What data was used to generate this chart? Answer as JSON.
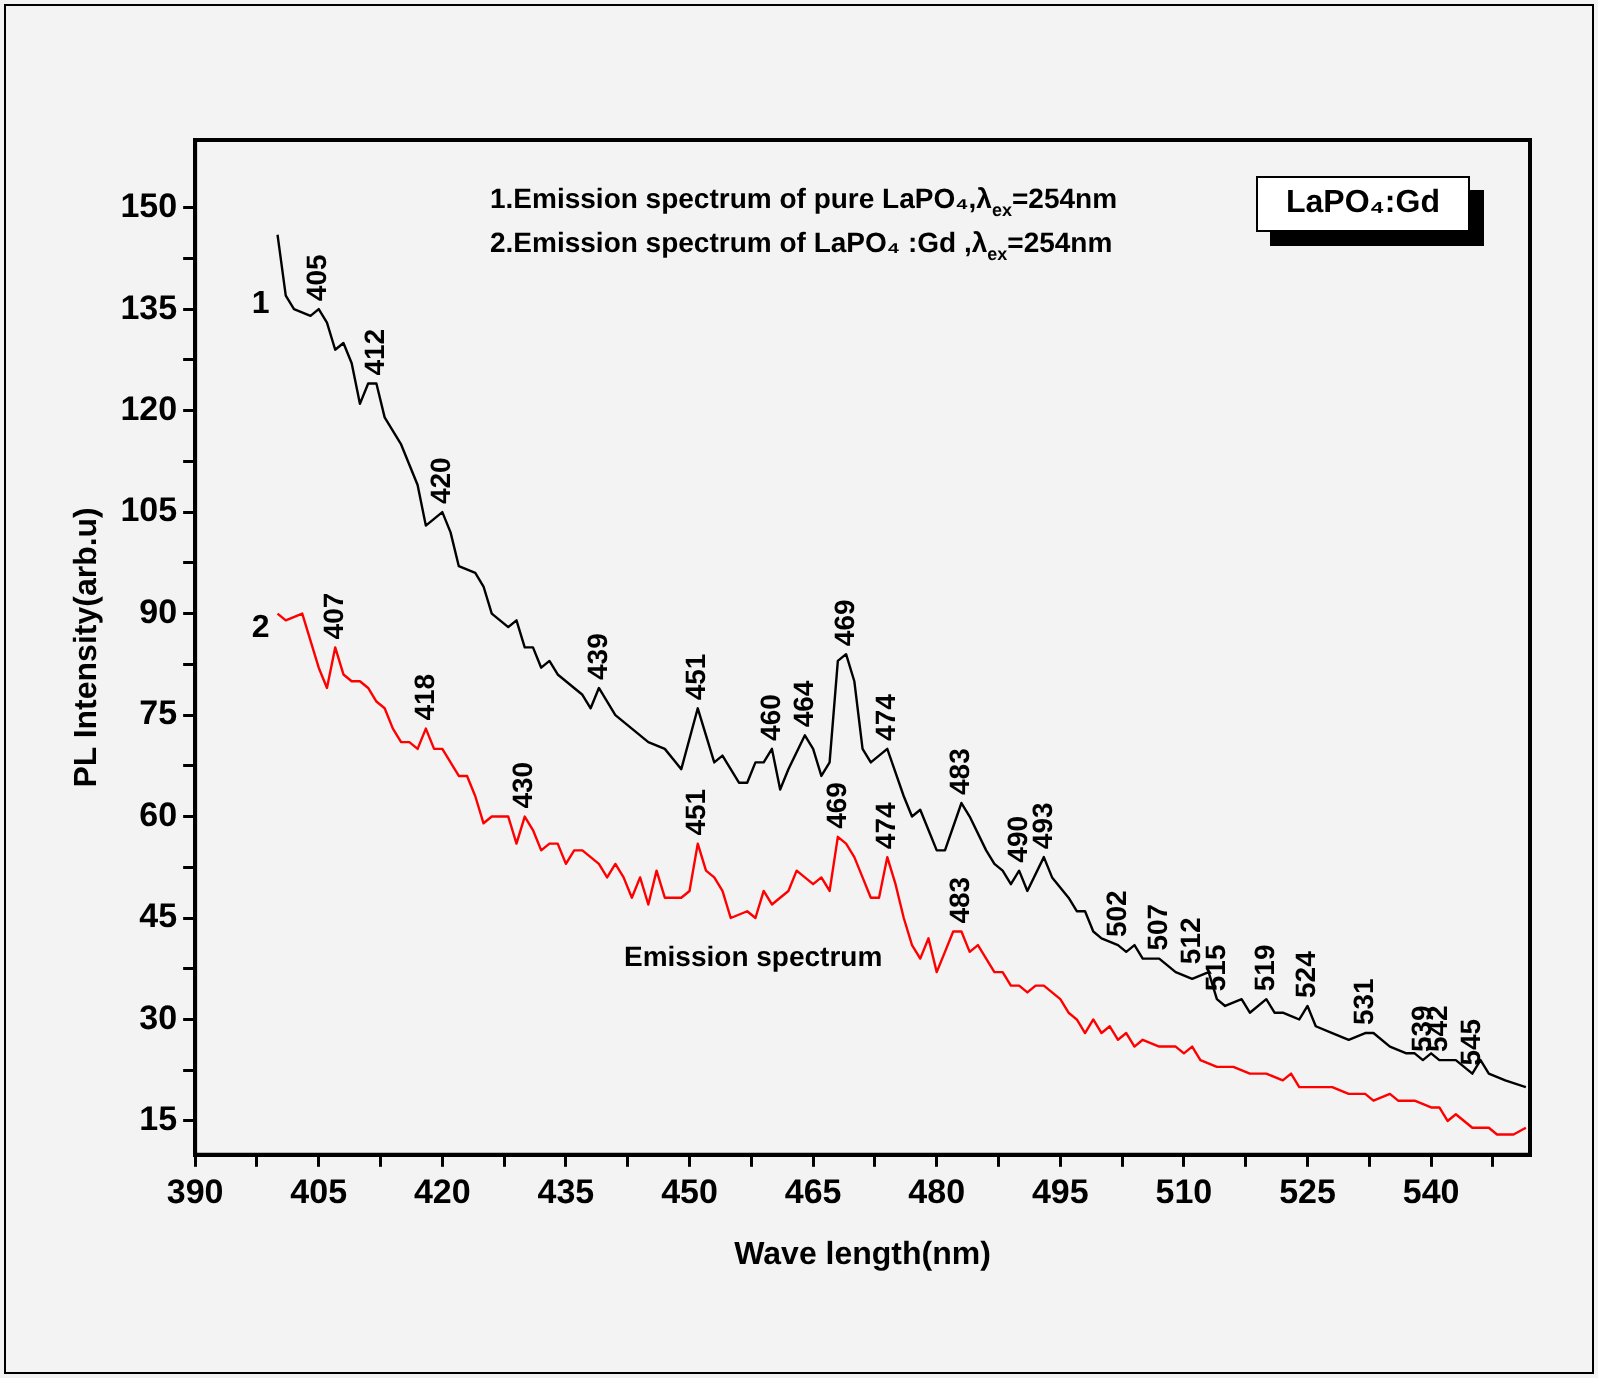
{
  "chart_data": {
    "type": "line",
    "xlabel": "Wave length(nm)",
    "ylabel": "PL Intensity(arb.u)",
    "xlim": [
      390,
      552
    ],
    "ylim": [
      10,
      160
    ],
    "xticks": [
      390,
      {
        "value": 397.5,
        "label": null
      },
      405,
      {
        "value": 412.5,
        "label": null
      },
      420,
      {
        "value": 427.5,
        "label": null
      },
      435,
      {
        "value": 442.5,
        "label": null
      },
      450,
      {
        "value": 457.5,
        "label": null
      },
      465,
      {
        "value": 472.5,
        "label": null
      },
      480,
      {
        "value": 487.5,
        "label": null
      },
      495,
      {
        "value": 502.5,
        "label": null
      },
      510,
      {
        "value": 517.5,
        "label": null
      },
      525,
      {
        "value": 532.5,
        "label": null
      },
      540,
      {
        "value": 547.5,
        "label": null
      }
    ],
    "yticks": [
      15,
      {
        "value": 22.5,
        "label": null
      },
      30,
      {
        "value": 37.5,
        "label": null
      },
      45,
      {
        "value": 52.5,
        "label": null
      },
      60,
      {
        "value": 67.5,
        "label": null
      },
      75,
      {
        "value": 82.5,
        "label": null
      },
      90,
      {
        "value": 97.5,
        "label": null
      },
      105,
      {
        "value": 112.5,
        "label": null
      },
      120,
      {
        "value": 127.5,
        "label": null
      },
      135,
      {
        "value": 142.5,
        "label": null
      },
      150
    ],
    "grid": false,
    "legend": false,
    "marker": "none",
    "line_style": "solid",
    "series": [
      {
        "name": "1",
        "color": "#000000",
        "x": [
          400,
          401,
          402,
          404,
          405,
          406,
          407,
          408,
          409,
          410,
          411,
          412,
          413,
          415,
          416,
          417,
          418,
          419,
          420,
          421,
          422,
          424,
          425,
          426,
          427,
          428,
          429,
          430,
          431,
          432,
          433,
          434,
          436,
          437,
          438,
          439,
          441,
          443,
          445,
          447,
          449,
          451,
          452,
          453,
          454,
          456,
          457,
          458,
          459,
          460,
          461,
          462,
          464,
          465,
          466,
          467,
          468,
          469,
          470,
          471,
          472,
          473,
          474,
          476,
          477,
          478,
          479,
          480,
          481,
          483,
          484,
          486,
          487,
          488,
          489,
          490,
          491,
          493,
          494,
          496,
          497,
          498,
          499,
          500,
          502,
          503,
          504,
          505,
          507,
          509,
          511,
          513,
          514,
          515,
          517,
          518,
          520,
          521,
          522,
          524,
          525,
          526,
          528,
          530,
          532,
          533,
          535,
          537,
          538,
          539,
          540,
          541,
          543,
          544,
          545,
          546,
          547,
          549,
          551.5
        ],
        "values": [
          146,
          137,
          135,
          134,
          135,
          133,
          129,
          130,
          127,
          121,
          124,
          124,
          119,
          115,
          112,
          109,
          103,
          104,
          105,
          102,
          97,
          96,
          94,
          90,
          89,
          88,
          89,
          85,
          85,
          82,
          83,
          81,
          79,
          78,
          76,
          79,
          75,
          73,
          71,
          70,
          67,
          76,
          72,
          68,
          69,
          65,
          65,
          68,
          68,
          70,
          64,
          67,
          72,
          70,
          66,
          68,
          83,
          84,
          80,
          70,
          68,
          69,
          70,
          63,
          60,
          61,
          58,
          55,
          55,
          62,
          60,
          55,
          53,
          52,
          50,
          52,
          49,
          54,
          51,
          48,
          46,
          46,
          43,
          42,
          41,
          40,
          41,
          39,
          39,
          37,
          36,
          37,
          33,
          32,
          33,
          31,
          33,
          31,
          31,
          30,
          32,
          29,
          28,
          27,
          28,
          28,
          26,
          25,
          25,
          24,
          25,
          24,
          24,
          23,
          22,
          24,
          22,
          21,
          20
        ]
      },
      {
        "name": "2",
        "color": "#ff0000",
        "x": [
          400,
          401,
          403,
          404,
          405,
          406,
          407,
          408,
          409,
          410,
          411,
          412,
          413,
          414,
          415,
          416,
          417,
          418,
          419,
          420,
          421,
          422,
          423,
          424,
          425,
          426,
          427,
          428,
          429,
          430,
          431,
          432,
          433,
          434,
          435,
          436,
          437,
          438,
          439,
          440,
          441,
          442,
          443,
          444,
          445,
          446,
          447,
          449,
          450,
          451,
          452,
          453,
          454,
          455,
          457,
          458,
          459,
          460,
          461,
          462,
          463,
          464,
          465,
          466,
          467,
          468,
          469,
          470,
          471,
          472,
          473,
          474,
          475,
          476,
          477,
          478,
          479,
          480,
          481,
          482,
          483,
          484,
          485,
          486,
          487,
          488,
          489,
          490,
          491,
          492,
          493,
          494,
          495,
          496,
          497,
          498,
          499,
          500,
          501,
          502,
          503,
          504,
          505,
          507,
          509,
          510,
          511,
          512,
          514,
          516,
          518,
          520,
          522,
          523,
          524,
          526,
          528,
          530,
          532,
          533,
          535,
          536,
          538,
          540,
          541,
          542,
          543,
          544,
          545,
          547,
          548,
          550,
          551.5
        ],
        "values": [
          90,
          89,
          90,
          86,
          82,
          79,
          85,
          81,
          80,
          80,
          79,
          77,
          76,
          73,
          71,
          71,
          70,
          73,
          70,
          70,
          68,
          66,
          66,
          63,
          59,
          60,
          60,
          60,
          56,
          60,
          58,
          55,
          56,
          56,
          53,
          55,
          55,
          54,
          53,
          51,
          53,
          51,
          48,
          51,
          47,
          52,
          48,
          48,
          49,
          56,
          52,
          51,
          49,
          45,
          46,
          45,
          49,
          47,
          48,
          49,
          52,
          51,
          50,
          51,
          49,
          57,
          56,
          54,
          51,
          48,
          48,
          54,
          50,
          45,
          41,
          39,
          42,
          37,
          40,
          43,
          43,
          40,
          41,
          39,
          37,
          37,
          35,
          35,
          34,
          35,
          35,
          34,
          33,
          31,
          30,
          28,
          30,
          28,
          29,
          27,
          28,
          26,
          27,
          26,
          26,
          25,
          26,
          24,
          23,
          23,
          22,
          22,
          21,
          22,
          20,
          20,
          20,
          19,
          19,
          18,
          19,
          18,
          18,
          17,
          17,
          15,
          16,
          15,
          14,
          14,
          13,
          13,
          14
        ]
      }
    ],
    "annotations": [
      "1.Emission spectrum of pure LaPO₄,λ$_{ex}$=254nm",
      "2.Emission spectrum of LaPO₄ :Gd ,λ$_{ex}$=254nm",
      "LaPO₄:Gd",
      "Emission spectrum",
      {
        "text": "405",
        "x": 405,
        "y": 135
      },
      {
        "text": "412",
        "x": 412,
        "y": 124
      },
      {
        "text": "420",
        "x": 420,
        "y": 105
      },
      {
        "text": "439",
        "x": 439,
        "y": 79
      },
      {
        "text": "451",
        "x": 451,
        "y": 76
      },
      {
        "text": "460",
        "x": 460,
        "y": 70
      },
      {
        "text": "464",
        "x": 464,
        "y": 72
      },
      {
        "text": "469",
        "x": 469,
        "y": 84
      },
      {
        "text": "474",
        "x": 474,
        "y": 70
      },
      {
        "text": "483",
        "x": 483,
        "y": 62
      },
      {
        "text": "490",
        "x": 490,
        "y": 52
      },
      {
        "text": "493",
        "x": 493,
        "y": 54
      },
      {
        "text": "502",
        "x": 502,
        "y": 41
      },
      {
        "text": "507",
        "x": 507,
        "y": 39
      },
      {
        "text": "512",
        "x": 511,
        "y": 37
      },
      {
        "text": "515",
        "x": 514,
        "y": 33
      },
      {
        "text": "519",
        "x": 520,
        "y": 33
      },
      {
        "text": "524",
        "x": 525,
        "y": 32
      },
      {
        "text": "531",
        "x": 532,
        "y": 28
      },
      {
        "text": "539",
        "x": 539,
        "y": 24
      },
      {
        "text": "542",
        "x": 541,
        "y": 24
      },
      {
        "text": "545",
        "x": 545,
        "y": 22
      },
      {
        "text": "407",
        "x": 407,
        "y": 85
      },
      {
        "text": "418",
        "x": 418,
        "y": 73
      },
      {
        "text": "430",
        "x": 430,
        "y": 60
      },
      {
        "text": "451",
        "x": 451,
        "y": 56
      },
      {
        "text": "469",
        "x": 468,
        "y": 57
      },
      {
        "text": "474",
        "x": 474,
        "y": 54
      },
      {
        "text": "483",
        "x": 483,
        "y": 43
      }
    ]
  }
}
